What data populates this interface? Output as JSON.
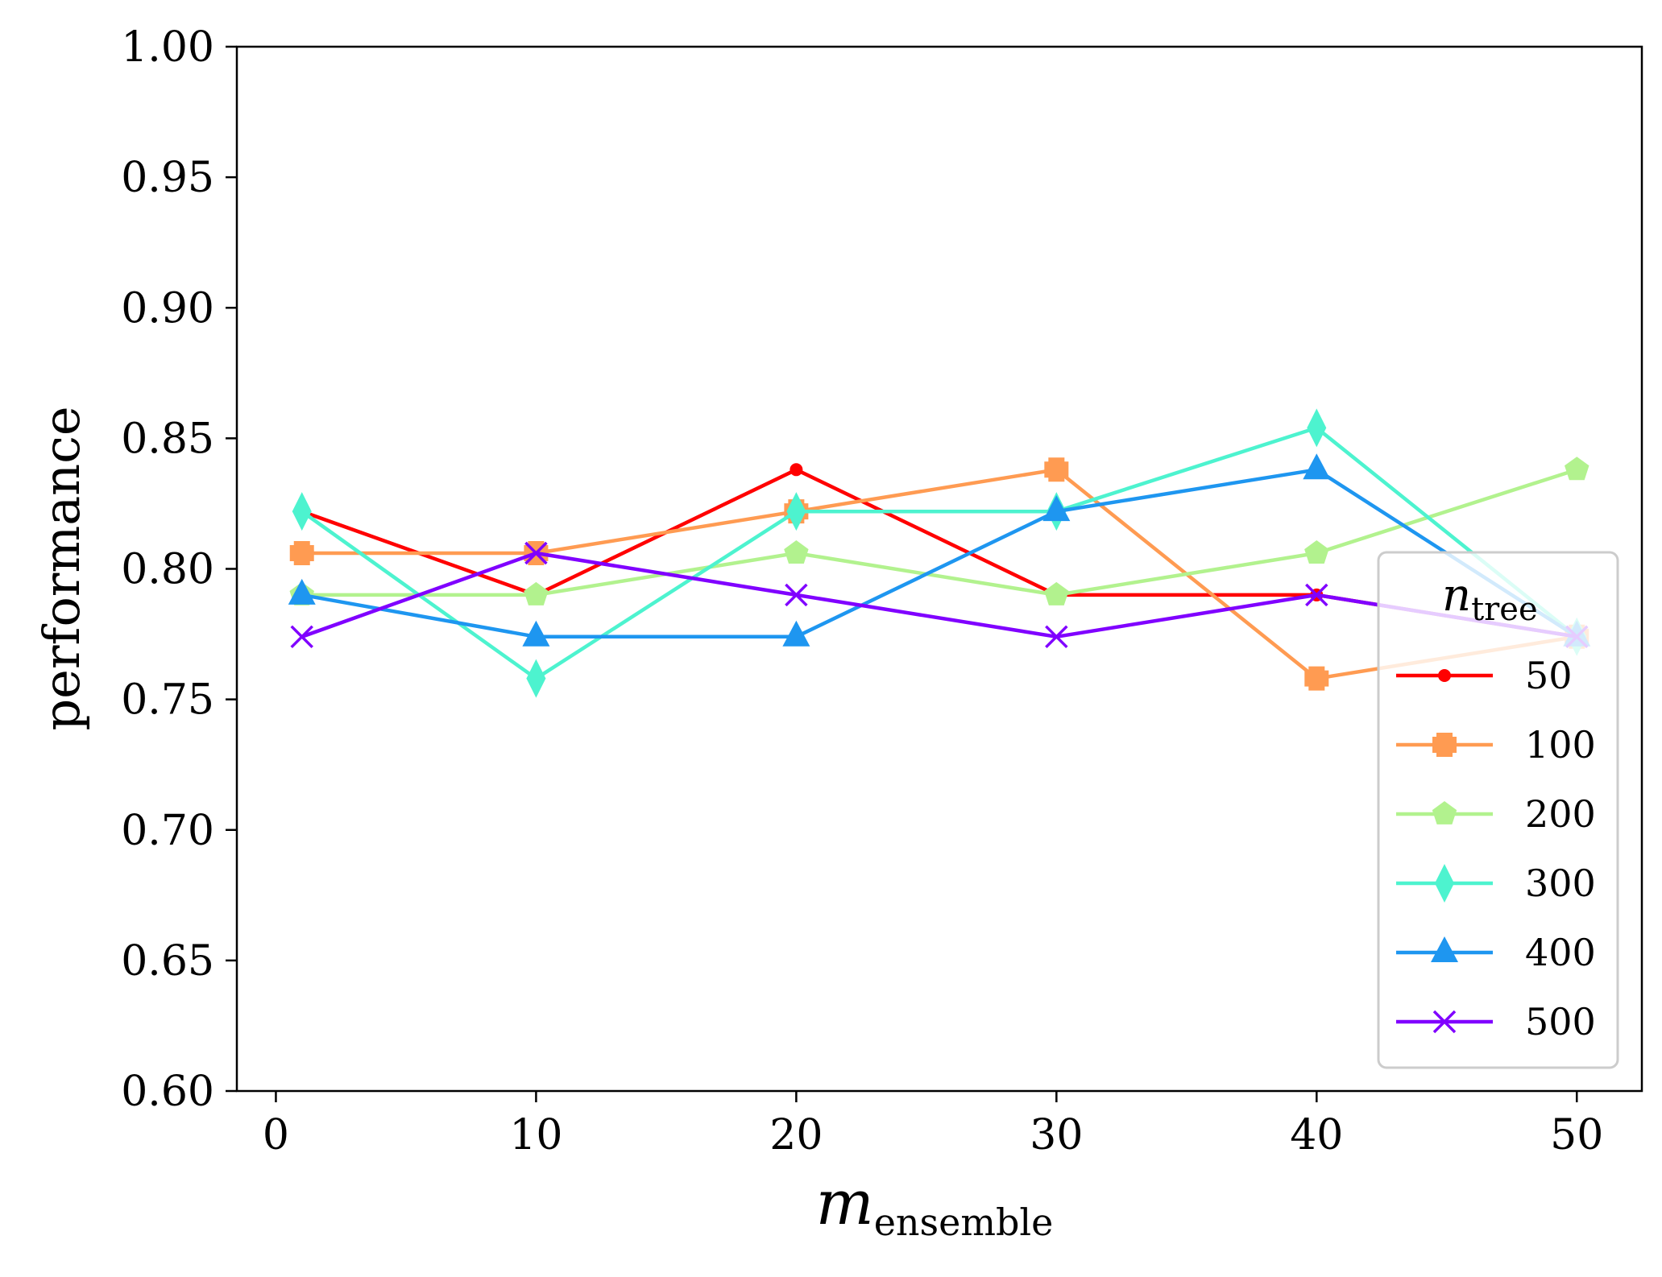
{
  "chart_data": {
    "type": "line",
    "title": "",
    "xlabel": "m",
    "xlabel_sub": "ensemble",
    "ylabel": "performance",
    "xlim": [
      -1.5,
      52.5
    ],
    "ylim": [
      0.6,
      1.0
    ],
    "xticks": [
      0,
      10,
      20,
      30,
      40,
      50
    ],
    "xtick_labels": [
      "0",
      "10",
      "20",
      "30",
      "40",
      "50"
    ],
    "yticks": [
      0.6,
      0.65,
      0.7,
      0.75,
      0.8,
      0.85,
      0.9,
      0.95,
      1.0
    ],
    "ytick_labels": [
      "0.60",
      "0.65",
      "0.70",
      "0.75",
      "0.80",
      "0.85",
      "0.90",
      "0.95",
      "1.00"
    ],
    "grid": false,
    "legend": {
      "title": "n",
      "title_sub": "tree",
      "placement": "lower-right"
    },
    "x": [
      1,
      10,
      20,
      30,
      40,
      50
    ],
    "series": [
      {
        "name": "50",
        "color": "#ff0000",
        "marker": "point",
        "values": [
          0.822,
          0.79,
          0.838,
          0.79,
          0.79,
          0.774
        ]
      },
      {
        "name": "100",
        "color": "#ff9b52",
        "marker": "plus",
        "values": [
          0.806,
          0.806,
          0.822,
          0.838,
          0.758,
          0.774
        ]
      },
      {
        "name": "200",
        "color": "#b2f28e",
        "marker": "pentagon",
        "values": [
          0.79,
          0.79,
          0.806,
          0.79,
          0.806,
          0.838
        ]
      },
      {
        "name": "300",
        "color": "#4df3cf",
        "marker": "diamond",
        "values": [
          0.822,
          0.758,
          0.822,
          0.822,
          0.854,
          0.774
        ]
      },
      {
        "name": "400",
        "color": "#1e96f0",
        "marker": "triangle",
        "values": [
          0.79,
          0.774,
          0.774,
          0.822,
          0.838,
          0.774
        ]
      },
      {
        "name": "500",
        "color": "#8000ff",
        "marker": "x",
        "values": [
          0.774,
          0.806,
          0.79,
          0.774,
          0.79,
          0.774
        ]
      }
    ]
  }
}
